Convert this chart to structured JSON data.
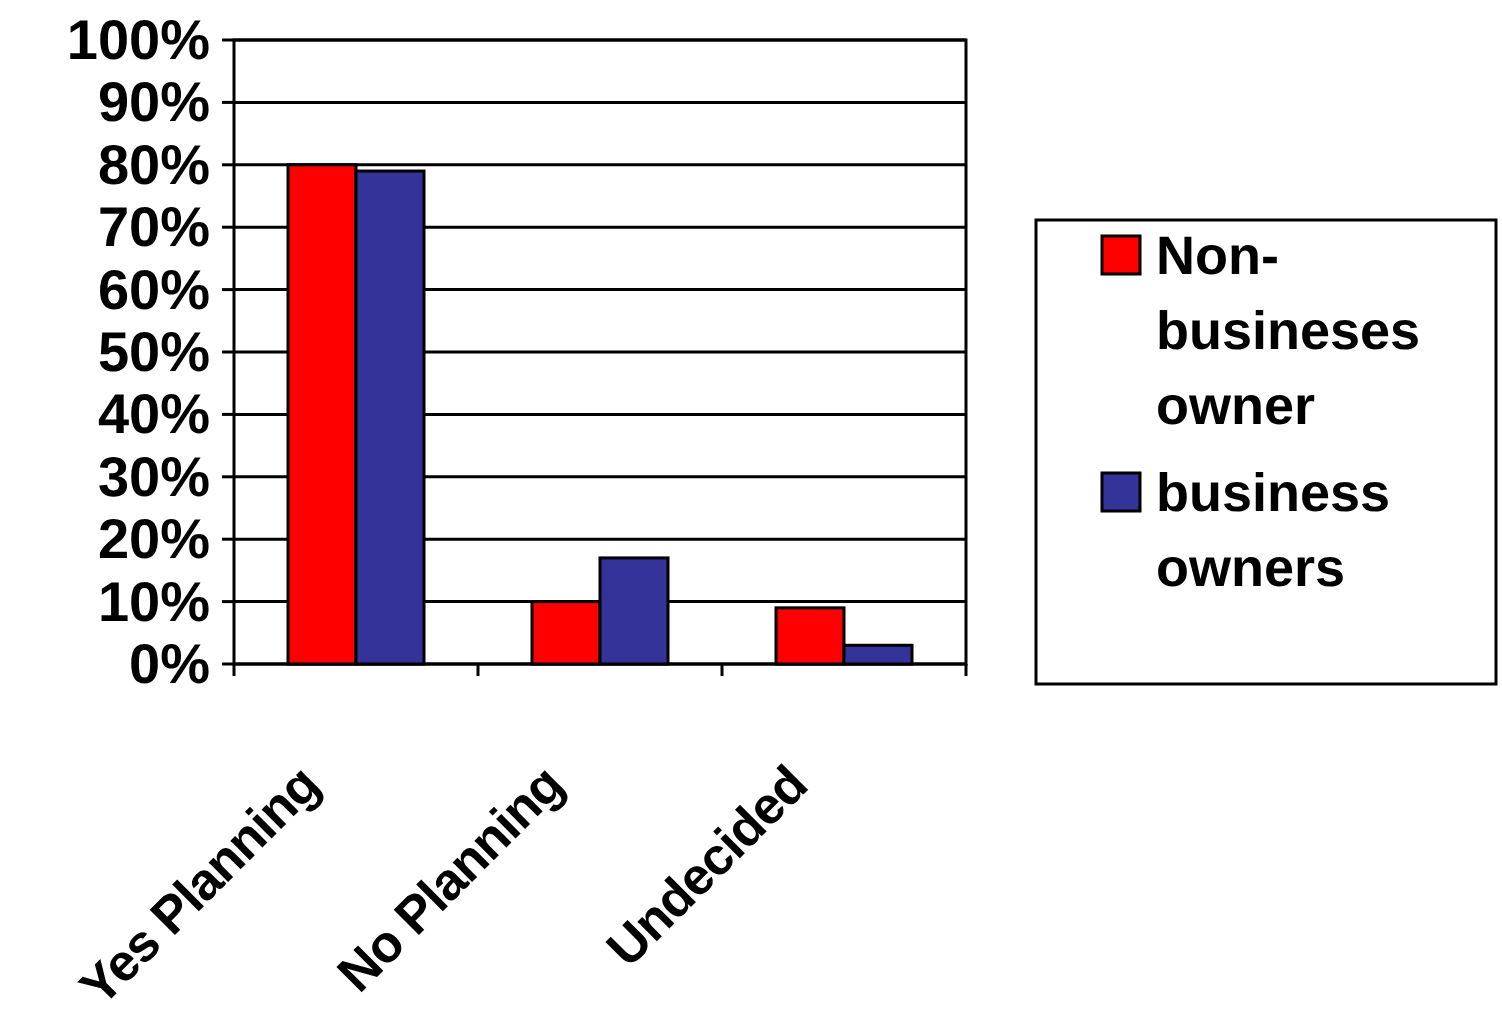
{
  "chart_data": {
    "type": "bar",
    "categories": [
      "Yes Planning",
      "No Planning",
      "Undecided"
    ],
    "series": [
      {
        "name": "Non-busineses owner",
        "color": "#ff0000",
        "values": [
          80,
          10,
          9
        ]
      },
      {
        "name": "business owners",
        "color": "#333399",
        "values": [
          79,
          17,
          3
        ]
      }
    ],
    "ylim": [
      0,
      100
    ],
    "yticks": [
      {
        "value": 0,
        "label": "0%"
      },
      {
        "value": 10,
        "label": "10%"
      },
      {
        "value": 20,
        "label": "20%"
      },
      {
        "value": 30,
        "label": "30%"
      },
      {
        "value": 40,
        "label": "40%"
      },
      {
        "value": 50,
        "label": "50%"
      },
      {
        "value": 60,
        "label": "60%"
      },
      {
        "value": 70,
        "label": "70%"
      },
      {
        "value": 80,
        "label": "80%"
      },
      {
        "value": 90,
        "label": "90%"
      },
      {
        "value": 100,
        "label": "100%"
      }
    ],
    "grid": "y",
    "legend": "right"
  }
}
